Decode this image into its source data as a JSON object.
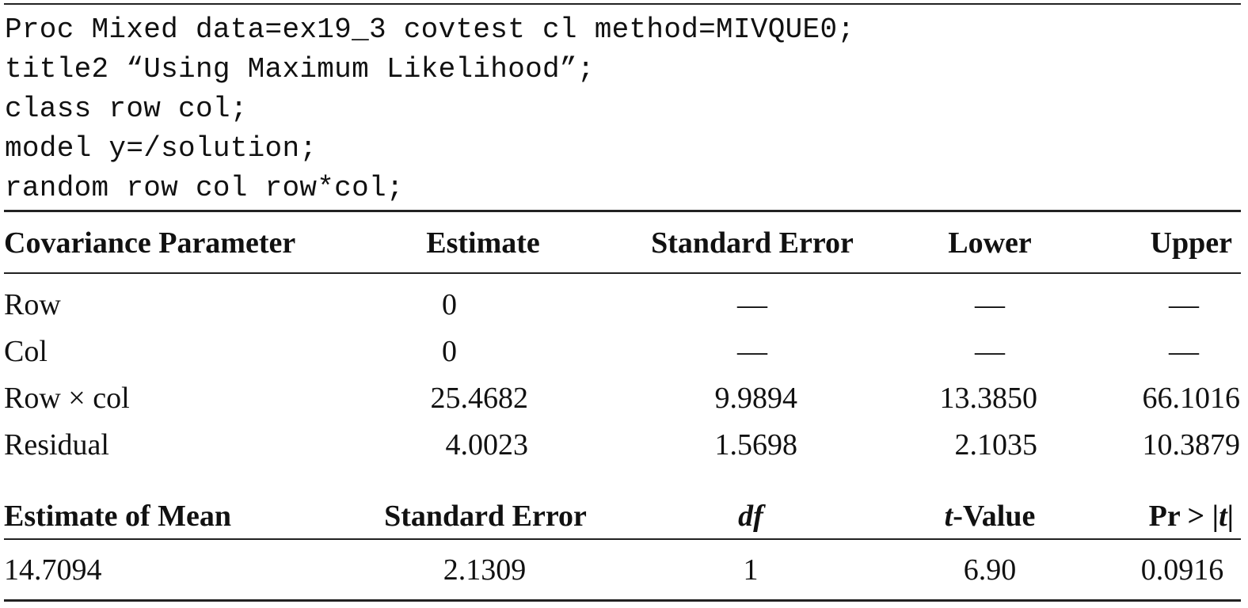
{
  "code": {
    "lines": [
      "Proc Mixed data=ex19_3 covtest cl method=MIVQUE0;",
      "title2 “Using Maximum Likelihood”;",
      "class row col;",
      "model y=/solution;",
      "random row col row*col;"
    ]
  },
  "cov_table": {
    "headers": [
      "Covariance Parameter",
      "Estimate",
      "Standard Error",
      "Lower",
      "Upper"
    ],
    "rows": [
      [
        "Row",
        "0",
        "—",
        "—",
        "—"
      ],
      [
        "Col",
        "0",
        "—",
        "—",
        "—"
      ],
      [
        "Row × col",
        "25.4682",
        "9.9894",
        "13.3850",
        "66.1016"
      ],
      [
        "Residual",
        "4.0023",
        "1.5698",
        "2.1035",
        "10.3879"
      ]
    ]
  },
  "mean_table": {
    "headers": {
      "estimate": "Estimate of Mean",
      "std_error": "Standard Error",
      "df": "df",
      "t_value_t": "t",
      "t_value_rest": "-Value",
      "pr_prefix": "Pr > |",
      "pr_t": "t",
      "pr_suffix": "|"
    },
    "row": [
      "14.7094",
      "2.1309",
      "1",
      "6.90",
      "0.0916"
    ]
  }
}
